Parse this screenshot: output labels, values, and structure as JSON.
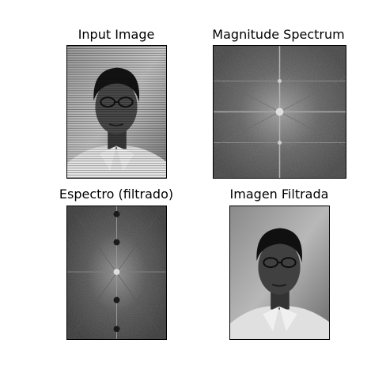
{
  "figure": {
    "panels": [
      {
        "title": "Input Image",
        "content": "grayscale-portrait-with-horizontal-stripe-noise"
      },
      {
        "title": "Magnitude Spectrum",
        "content": "fft-magnitude-spectrum-with-vertical-peaks"
      },
      {
        "title": "Espectro (filtrado)",
        "content": "filtered-fft-spectrum-with-notches"
      },
      {
        "title": "Imagen Filtrada",
        "content": "grayscale-portrait-filtered"
      }
    ]
  }
}
